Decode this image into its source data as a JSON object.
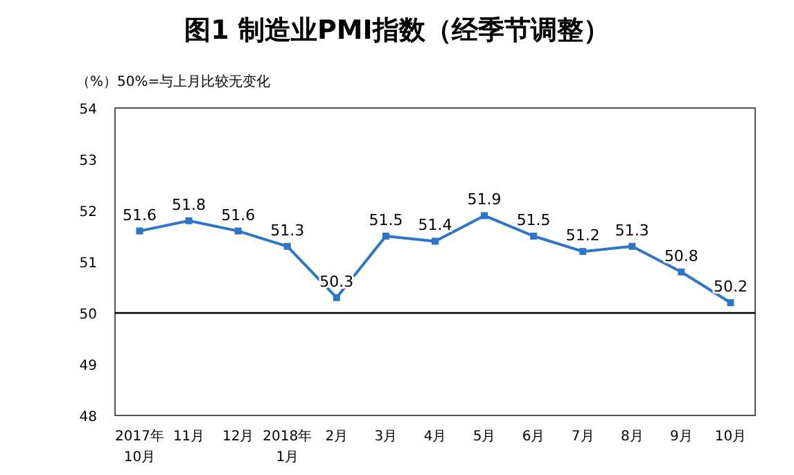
{
  "chart_data": {
    "type": "line",
    "title": "图1 制造业PMI指数（经季节调整）",
    "subtitle": "（%）50%=与上月比较无变化",
    "categories": [
      "2017年\n10月",
      "11月",
      "12月",
      "2018年\n1月",
      "2月",
      "3月",
      "4月",
      "5月",
      "6月",
      "7月",
      "8月",
      "9月",
      "10月"
    ],
    "series": [
      {
        "color": "#2e75c8",
        "values": [
          51.6,
          51.8,
          51.6,
          51.3,
          50.3,
          51.5,
          51.4,
          51.9,
          51.5,
          51.2,
          51.3,
          50.8,
          50.2
        ]
      }
    ],
    "ylim": [
      48,
      54
    ],
    "yticks": [
      48,
      49,
      50,
      51,
      52,
      53,
      54
    ],
    "ref_lines": [
      {
        "axis": "y",
        "value": 50,
        "color": "#000000"
      }
    ],
    "data_labels": true,
    "marker": "square"
  }
}
